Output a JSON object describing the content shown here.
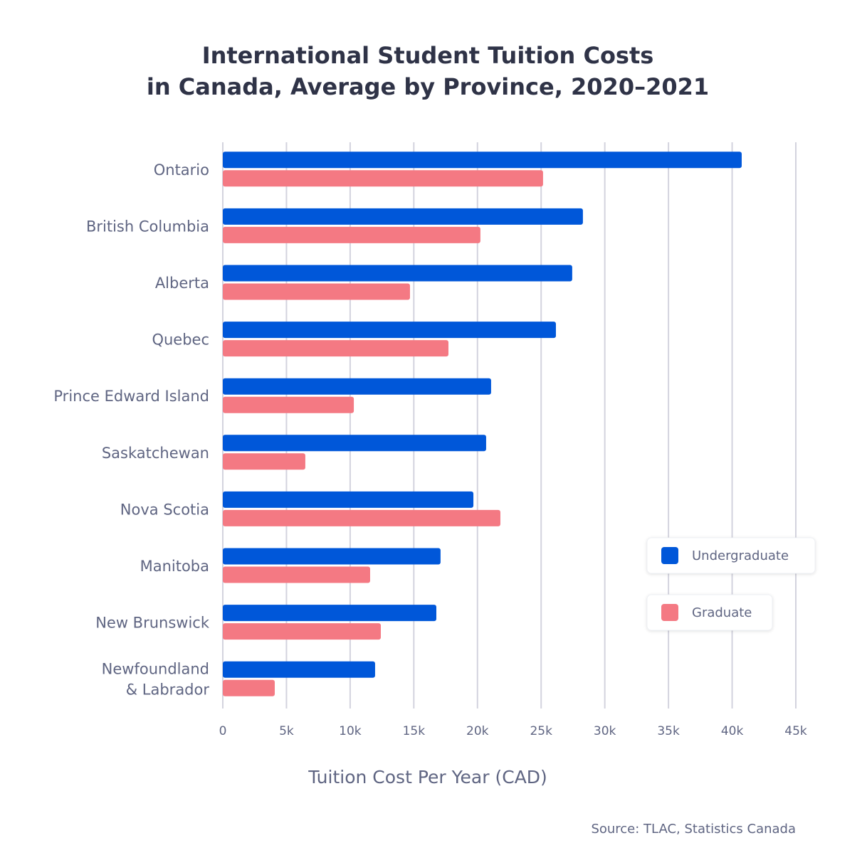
{
  "chart_data": {
    "type": "hbar",
    "title": [
      "International Student Tuition Costs",
      "in Canada, Average by Province, 2020–2021"
    ],
    "x_label": "Tuition Cost Per Year (CAD)",
    "source": "Source: TLAC, Statistics Canada",
    "categories": [
      "Ontario",
      "British Columbia",
      "Alberta",
      "Quebec",
      "Prince Edward Island",
      "Saskatchewan",
      "Nova Scotia",
      "Manitoba",
      "New Brunswick",
      "Newfoundland\n& Labrador"
    ],
    "series": [
      {
        "name": "Undergraduate",
        "color": "#0057d9",
        "values": [
          40750,
          28280,
          27440,
          26160,
          21070,
          20680,
          19680,
          17100,
          16770,
          11960
        ]
      },
      {
        "name": "Graduate",
        "color": "#f47983",
        "values": [
          25150,
          20230,
          14700,
          17720,
          10290,
          6480,
          21800,
          11570,
          12410,
          4080
        ]
      }
    ],
    "xlim": [
      0,
      45000
    ],
    "xticks": [
      0,
      {
        "value": 5000,
        "label": "5k"
      },
      {
        "value": 10000,
        "label": "10k"
      },
      {
        "value": 15000,
        "label": "15k"
      },
      {
        "value": 20000,
        "label": "20k"
      },
      {
        "value": 25000,
        "label": "25k"
      },
      {
        "value": 30000,
        "label": "30k"
      },
      {
        "value": 35000,
        "label": "35k"
      },
      {
        "value": 40000,
        "label": "40k"
      },
      {
        "value": 45000,
        "label": "45k"
      }
    ],
    "grid": true,
    "legend": "right"
  }
}
